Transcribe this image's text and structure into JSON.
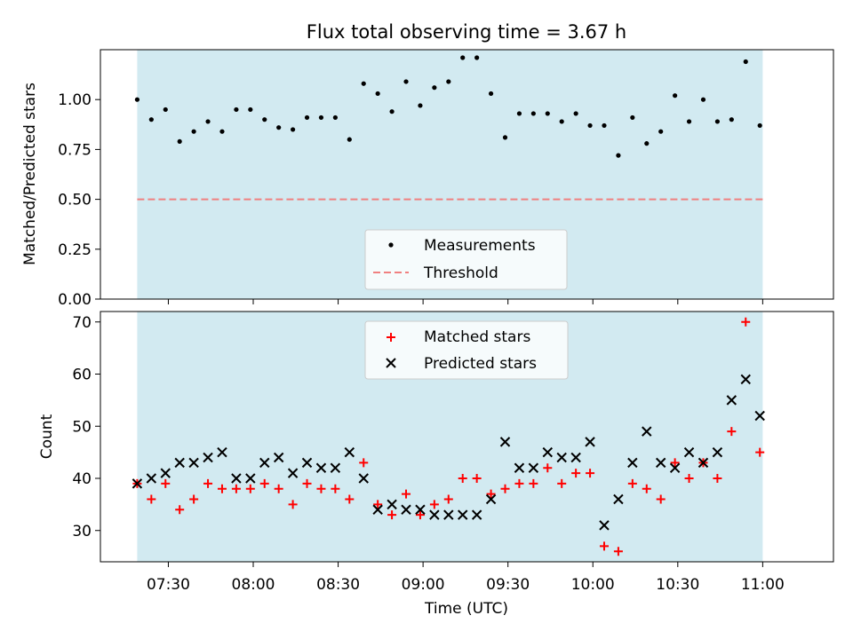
{
  "chart_data": [
    {
      "type": "scatter",
      "title": "Flux total observing time = 3.67 h",
      "ylabel": "Matched/Predicted stars",
      "ylim": [
        0,
        1.25
      ],
      "yticks": [
        "0.00",
        "0.25",
        "0.50",
        "0.75",
        "1.00"
      ],
      "ytick_values": [
        0,
        0.25,
        0.5,
        0.75,
        1.0
      ],
      "shaded_span": {
        "x": [
          "07:19",
          "11:00"
        ],
        "color": "#add8e6"
      },
      "threshold": {
        "name": "Threshold",
        "value": 0.5,
        "color": "#f08080",
        "style": "dashed"
      },
      "legend": {
        "placement": "lower-center",
        "entries": [
          "Measurements",
          "Threshold"
        ]
      },
      "series": [
        {
          "name": "Measurements",
          "color": "#000000",
          "marker": "dot",
          "x": [
            "07:19",
            "07:24",
            "07:29",
            "07:34",
            "07:39",
            "07:44",
            "07:49",
            "07:54",
            "07:59",
            "08:04",
            "08:09",
            "08:14",
            "08:19",
            "08:24",
            "08:29",
            "08:34",
            "08:39",
            "08:44",
            "08:49",
            "08:54",
            "08:59",
            "09:04",
            "09:09",
            "09:14",
            "09:19",
            "09:24",
            "09:29",
            "09:34",
            "09:39",
            "09:44",
            "09:49",
            "09:54",
            "09:59",
            "10:04",
            "10:09",
            "10:14",
            "10:19",
            "10:24",
            "10:29",
            "10:34",
            "10:39",
            "10:44",
            "10:49",
            "10:54",
            "10:59"
          ],
          "y": [
            1.0,
            0.9,
            0.95,
            0.79,
            0.84,
            0.89,
            0.84,
            0.95,
            0.95,
            0.9,
            0.86,
            0.85,
            0.91,
            0.91,
            0.91,
            0.8,
            1.08,
            1.03,
            0.94,
            1.09,
            0.97,
            1.06,
            1.09,
            1.21,
            1.21,
            1.03,
            0.81,
            0.93,
            0.93,
            0.93,
            0.89,
            0.93,
            0.87,
            0.87,
            0.72,
            0.91,
            0.78,
            0.84,
            1.02,
            0.89,
            1.0,
            0.89,
            0.9,
            1.19,
            0.87
          ]
        }
      ]
    },
    {
      "type": "scatter",
      "xlabel": "Time (UTC)",
      "ylabel": "Count",
      "ylim": [
        24,
        72
      ],
      "yticks": [
        "30",
        "40",
        "50",
        "60",
        "70"
      ],
      "ytick_values": [
        30,
        40,
        50,
        60,
        70
      ],
      "xlim": [
        "07:06",
        "11:25"
      ],
      "xticks": [
        "07:30",
        "08:00",
        "08:30",
        "09:00",
        "09:30",
        "10:00",
        "10:30",
        "11:00"
      ],
      "shaded_span": {
        "x": [
          "07:19",
          "11:00"
        ],
        "color": "#add8e6"
      },
      "legend": {
        "placement": "top-center",
        "entries": [
          "Matched stars",
          "Predicted stars"
        ]
      },
      "x": [
        "07:19",
        "07:24",
        "07:29",
        "07:34",
        "07:39",
        "07:44",
        "07:49",
        "07:54",
        "07:59",
        "08:04",
        "08:09",
        "08:14",
        "08:19",
        "08:24",
        "08:29",
        "08:34",
        "08:39",
        "08:44",
        "08:49",
        "08:54",
        "08:59",
        "09:04",
        "09:09",
        "09:14",
        "09:19",
        "09:24",
        "09:29",
        "09:34",
        "09:39",
        "09:44",
        "09:49",
        "09:54",
        "09:59",
        "10:04",
        "10:09",
        "10:14",
        "10:19",
        "10:24",
        "10:29",
        "10:34",
        "10:39",
        "10:44",
        "10:49",
        "10:54",
        "10:59"
      ],
      "series": [
        {
          "name": "Matched stars",
          "color": "#ff0000",
          "marker": "plus",
          "values": [
            39,
            36,
            39,
            34,
            36,
            39,
            38,
            38,
            38,
            39,
            38,
            35,
            39,
            38,
            38,
            36,
            43,
            35,
            33,
            37,
            33,
            35,
            36,
            40,
            40,
            37,
            38,
            39,
            39,
            42,
            39,
            41,
            41,
            27,
            26,
            39,
            38,
            36,
            43,
            40,
            43,
            40,
            49,
            70,
            45
          ]
        },
        {
          "name": "Predicted stars",
          "color": "#000000",
          "marker": "x",
          "values": [
            39,
            40,
            41,
            43,
            43,
            44,
            45,
            40,
            40,
            43,
            44,
            41,
            43,
            42,
            42,
            45,
            40,
            34,
            35,
            34,
            34,
            33,
            33,
            33,
            33,
            36,
            47,
            42,
            42,
            45,
            44,
            44,
            47,
            31,
            36,
            43,
            49,
            43,
            42,
            45,
            43,
            45,
            55,
            59,
            52
          ]
        }
      ]
    }
  ]
}
